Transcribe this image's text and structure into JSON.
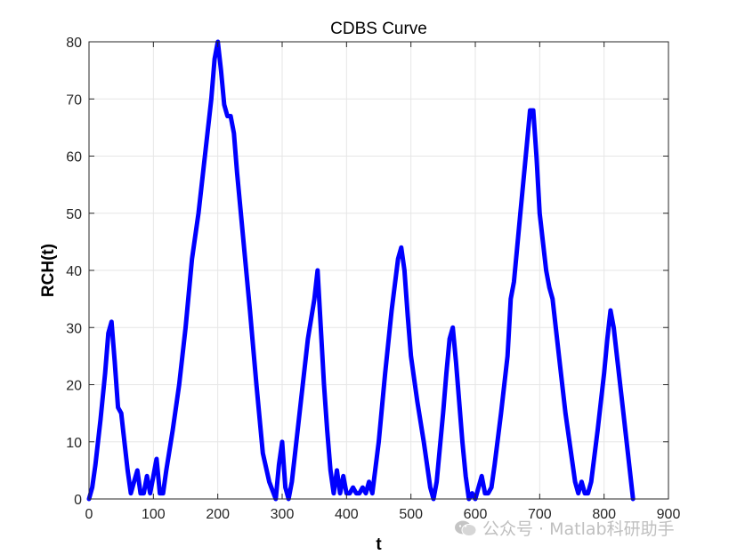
{
  "chart_data": {
    "type": "line",
    "title": "CDBS Curve",
    "xlabel": "t",
    "ylabel": "RCH(t)",
    "xlim": [
      0,
      900
    ],
    "ylim": [
      0,
      80
    ],
    "xticks": [
      0,
      100,
      200,
      300,
      400,
      500,
      600,
      700,
      800,
      900
    ],
    "yticks": [
      0,
      10,
      20,
      30,
      40,
      50,
      60,
      70,
      80
    ],
    "grid": true,
    "line_color": "#0000ff",
    "series": [
      {
        "x": [
          0,
          5,
          10,
          18,
          25,
          30,
          35,
          40,
          45,
          50,
          55,
          60,
          65,
          70,
          75,
          80,
          85,
          90,
          95,
          100,
          105,
          110,
          115,
          120,
          130,
          140,
          150,
          160,
          170,
          180,
          190,
          195,
          200,
          205,
          210,
          215,
          220,
          225,
          230,
          240,
          250,
          260,
          270,
          280,
          290,
          295,
          300,
          305,
          310,
          315,
          320,
          330,
          340,
          350,
          355,
          360,
          365,
          370,
          375,
          380,
          385,
          390,
          395,
          400,
          405,
          410,
          415,
          420,
          425,
          430,
          435,
          440,
          450,
          460,
          470,
          480,
          485,
          490,
          495,
          500,
          510,
          520,
          530,
          535,
          540,
          550,
          555,
          560,
          565,
          570,
          575,
          580,
          585,
          590,
          595,
          600,
          605,
          610,
          615,
          620,
          625,
          630,
          640,
          650,
          655,
          660,
          670,
          680,
          685,
          690,
          695,
          700,
          710,
          715,
          720,
          725,
          730,
          740,
          750,
          755,
          760,
          765,
          770,
          775,
          780,
          790,
          800,
          805,
          810,
          815,
          820,
          830,
          840,
          845
        ],
        "y": [
          0,
          2,
          6,
          14,
          22,
          29,
          31,
          24,
          16,
          15,
          10,
          5,
          1,
          3,
          5,
          1,
          1,
          4,
          1,
          4,
          7,
          1,
          1,
          5,
          12,
          20,
          30,
          42,
          50,
          60,
          70,
          77,
          80,
          75,
          69,
          67,
          67,
          64,
          57,
          45,
          33,
          20,
          8,
          3,
          0,
          6,
          10,
          2,
          0,
          3,
          8,
          18,
          28,
          35,
          40,
          30,
          20,
          12,
          5,
          1,
          5,
          1,
          4,
          1,
          1,
          2,
          1,
          1,
          2,
          1,
          3,
          1,
          10,
          22,
          33,
          42,
          44,
          40,
          32,
          25,
          17,
          10,
          2,
          0,
          3,
          15,
          22,
          28,
          30,
          24,
          17,
          10,
          4,
          0,
          1,
          0,
          2,
          4,
          1,
          1,
          2,
          6,
          15,
          25,
          35,
          38,
          50,
          62,
          68,
          68,
          60,
          50,
          40,
          37,
          35,
          30,
          25,
          15,
          7,
          3,
          1,
          3,
          1,
          1,
          3,
          12,
          22,
          28,
          33,
          30,
          25,
          15,
          5,
          0
        ]
      }
    ]
  },
  "watermark": {
    "text": "公众号 · Matlab科研助手"
  }
}
